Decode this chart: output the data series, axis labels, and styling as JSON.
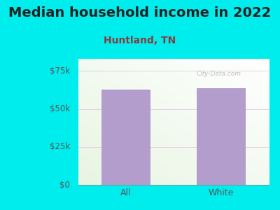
{
  "title": "Median household income in 2022",
  "subtitle": "Huntland, TN",
  "categories": [
    "All",
    "White"
  ],
  "values": [
    62500,
    63500
  ],
  "bar_color": "#b39dcc",
  "outer_bg": "#00edee",
  "plot_bg_colors": [
    "#e8f5e2",
    "#f8fff5",
    "#f0f8f0",
    "#ffffff"
  ],
  "title_color": "#222222",
  "subtitle_color": "#8b3a3a",
  "tick_color": "#555555",
  "yticks": [
    0,
    25000,
    50000,
    75000
  ],
  "ytick_labels": [
    "$0",
    "$25k",
    "$50k",
    "$75k"
  ],
  "ylim": [
    0,
    83000
  ],
  "watermark": "City-Data.com",
  "title_fontsize": 14,
  "subtitle_fontsize": 10,
  "tick_fontsize": 8.5
}
